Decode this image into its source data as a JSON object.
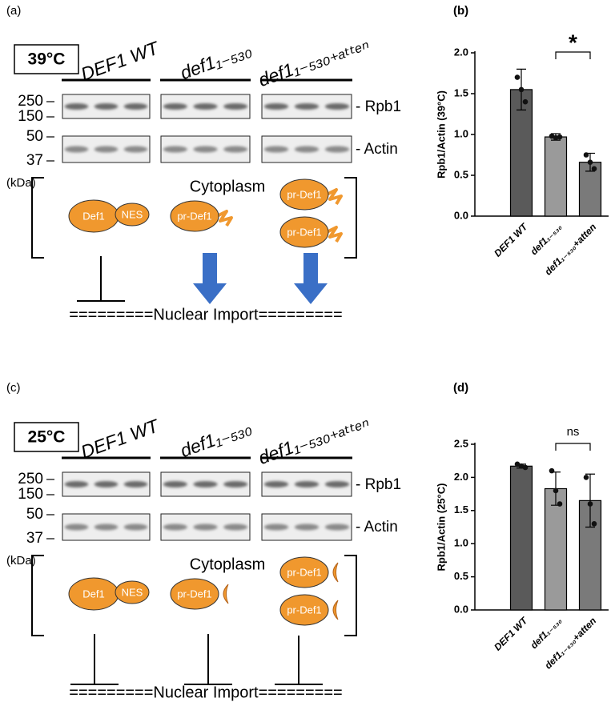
{
  "figure": {
    "panel_labels": [
      "(a)",
      "(b)",
      "(c)",
      "(d)"
    ],
    "blots": [
      {
        "temperature": "39°C",
        "strains": [
          "DEF1 WT",
          "def1₁₋₅₃₀",
          "def1₁₋₅₃₀₊ₐₜₜₑₙ"
        ],
        "mw": [
          "250",
          "150",
          "50",
          "37"
        ],
        "unit": "(kDa)",
        "bands": [
          "- Rpb1",
          "- Actin"
        ],
        "compartment": "Cytoplasm",
        "proteins": [
          "Def1",
          "NES",
          "pr-Def1",
          "pr-Def1",
          "pr-Def1"
        ],
        "footer": "=========Nuclear Import========="
      },
      {
        "temperature": "25°C",
        "strains": [
          "DEF1 WT",
          "def1₁₋₅₃₀",
          "def1₁₋₅₃₀₊ₐₜₜₑₙ"
        ],
        "mw": [
          "250",
          "150",
          "50",
          "37"
        ],
        "unit": "(kDa)",
        "bands": [
          "- Rpb1",
          "- Actin"
        ],
        "compartment": "Cytoplasm",
        "proteins": [
          "Def1",
          "NES",
          "pr-Def1",
          "pr-Def1",
          "pr-Def1"
        ],
        "footer": "=========Nuclear Import========="
      }
    ]
  },
  "chart_data": [
    {
      "type": "bar",
      "ylabel": "Rpb1/Actin (39°C)",
      "categories": [
        "DEF1 WT",
        "def1₁₋₅₃₀",
        "def1₁₋₅₃₀+atten"
      ],
      "values": [
        1.55,
        0.97,
        0.66
      ],
      "errors": [
        0.25,
        0.04,
        0.11
      ],
      "points": [
        [
          1.7,
          1.55,
          1.4
        ],
        [
          0.98,
          0.96,
          0.97
        ],
        [
          0.75,
          0.66,
          0.58
        ]
      ],
      "colors": [
        "#5a5a5a",
        "#9a9a9a",
        "#7a7a7a"
      ],
      "ylim": [
        0,
        2.0
      ],
      "yticks": [
        {
          "value": 0,
          "label": "0.0"
        },
        0.5,
        {
          "value": 1,
          "label": "1.0"
        },
        1.5,
        {
          "value": 2,
          "label": "2.0"
        }
      ],
      "annotation": "*"
    },
    {
      "type": "bar",
      "ylabel": "Rpb1/Actin (25°C)",
      "categories": [
        "DEF1 WT",
        "def1₁₋₅₃₀",
        "def1₁₋₅₃₀+atten"
      ],
      "values": [
        2.17,
        1.83,
        1.65
      ],
      "errors": [
        0.03,
        0.25,
        0.4
      ],
      "points": [
        [
          2.2,
          2.17,
          2.15
        ],
        [
          2.1,
          1.8,
          1.6
        ],
        [
          2.0,
          1.6,
          1.3
        ]
      ],
      "colors": [
        "#5a5a5a",
        "#9a9a9a",
        "#7a7a7a"
      ],
      "ylim": [
        0,
        2.5
      ],
      "yticks": [
        {
          "value": 0,
          "label": "0.0"
        },
        0.5,
        {
          "value": 1,
          "label": "1.0"
        },
        1.5,
        {
          "value": 2,
          "label": "2.0"
        },
        2.5
      ],
      "annotation": "ns"
    }
  ]
}
